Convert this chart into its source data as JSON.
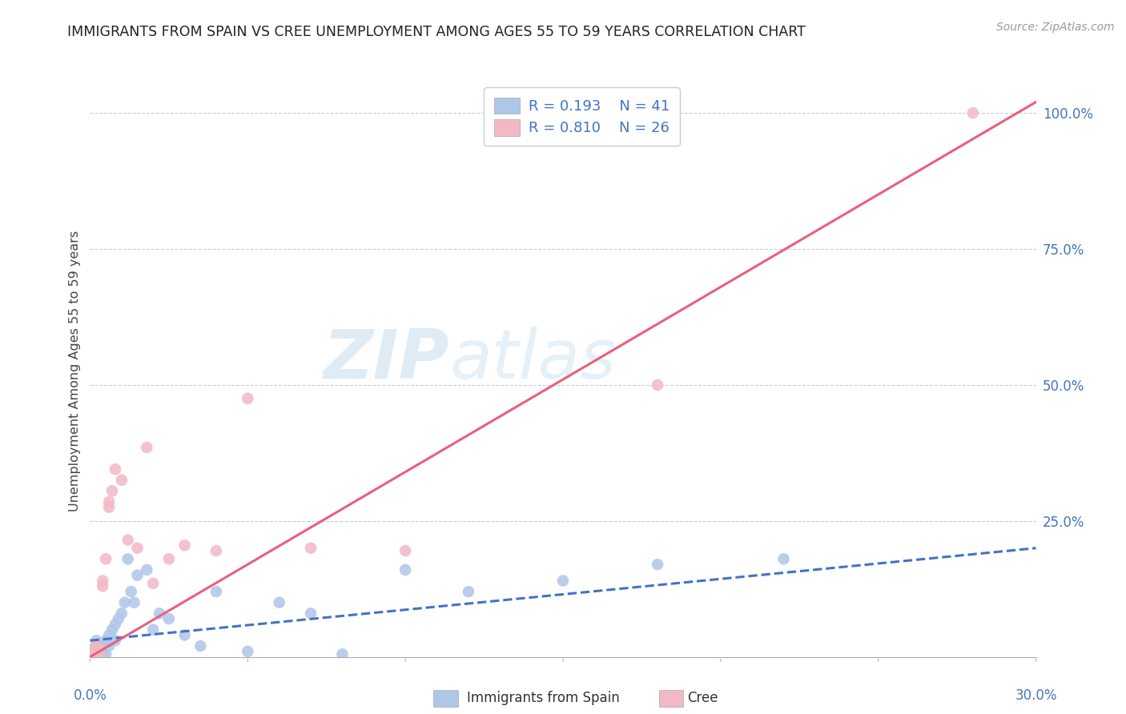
{
  "title": "IMMIGRANTS FROM SPAIN VS CREE UNEMPLOYMENT AMONG AGES 55 TO 59 YEARS CORRELATION CHART",
  "source": "Source: ZipAtlas.com",
  "ylabel": "Unemployment Among Ages 55 to 59 years",
  "xmin": 0.0,
  "xmax": 0.3,
  "ymin": 0.0,
  "ymax": 1.05,
  "x_tick_labels_show": [
    "0.0%",
    "30.0%"
  ],
  "x_tick_positions_show": [
    0.0,
    0.3
  ],
  "y_ticks_right": [
    0.25,
    0.5,
    0.75,
    1.0
  ],
  "y_tick_labels_right": [
    "25.0%",
    "50.0%",
    "75.0%",
    "100.0%"
  ],
  "legend_r1": "R = 0.193",
  "legend_n1": "N = 41",
  "legend_r2": "R = 0.810",
  "legend_n2": "N = 26",
  "legend_label1": "Immigrants from Spain",
  "legend_label2": "Cree",
  "blue_color": "#aec6e8",
  "pink_color": "#f2b8c6",
  "blue_line_color": "#4472c4",
  "pink_line_color": "#e8607a",
  "blue_scatter_x": [
    0.001,
    0.001,
    0.001,
    0.002,
    0.002,
    0.002,
    0.003,
    0.003,
    0.003,
    0.004,
    0.004,
    0.005,
    0.005,
    0.006,
    0.006,
    0.007,
    0.008,
    0.008,
    0.009,
    0.01,
    0.011,
    0.012,
    0.013,
    0.014,
    0.015,
    0.018,
    0.02,
    0.022,
    0.025,
    0.03,
    0.035,
    0.04,
    0.05,
    0.06,
    0.07,
    0.08,
    0.1,
    0.12,
    0.15,
    0.18,
    0.22
  ],
  "blue_scatter_y": [
    0.01,
    0.015,
    0.005,
    0.02,
    0.01,
    0.03,
    0.015,
    0.02,
    0.005,
    0.025,
    0.01,
    0.03,
    0.005,
    0.04,
    0.02,
    0.05,
    0.06,
    0.03,
    0.07,
    0.08,
    0.1,
    0.18,
    0.12,
    0.1,
    0.15,
    0.16,
    0.05,
    0.08,
    0.07,
    0.04,
    0.02,
    0.12,
    0.01,
    0.1,
    0.08,
    0.005,
    0.16,
    0.12,
    0.14,
    0.17,
    0.18
  ],
  "pink_scatter_x": [
    0.001,
    0.001,
    0.002,
    0.002,
    0.003,
    0.003,
    0.004,
    0.004,
    0.005,
    0.006,
    0.006,
    0.007,
    0.008,
    0.01,
    0.012,
    0.015,
    0.018,
    0.02,
    0.025,
    0.03,
    0.04,
    0.05,
    0.07,
    0.1,
    0.18,
    0.28
  ],
  "pink_scatter_y": [
    0.01,
    0.005,
    0.02,
    0.01,
    0.005,
    0.015,
    0.13,
    0.14,
    0.18,
    0.285,
    0.275,
    0.305,
    0.345,
    0.325,
    0.215,
    0.2,
    0.385,
    0.135,
    0.18,
    0.205,
    0.195,
    0.475,
    0.2,
    0.195,
    0.5,
    1.0
  ],
  "blue_line_x": [
    0.0,
    0.3
  ],
  "blue_line_y": [
    0.03,
    0.2
  ],
  "pink_line_x": [
    0.0,
    0.3
  ],
  "pink_line_y": [
    0.0,
    1.02
  ],
  "watermark_zip": "ZIP",
  "watermark_atlas": "atlas",
  "background_color": "#ffffff",
  "grid_color": "#cccccc",
  "title_color": "#222222",
  "source_color": "#999999",
  "axis_label_color": "#4472c4"
}
